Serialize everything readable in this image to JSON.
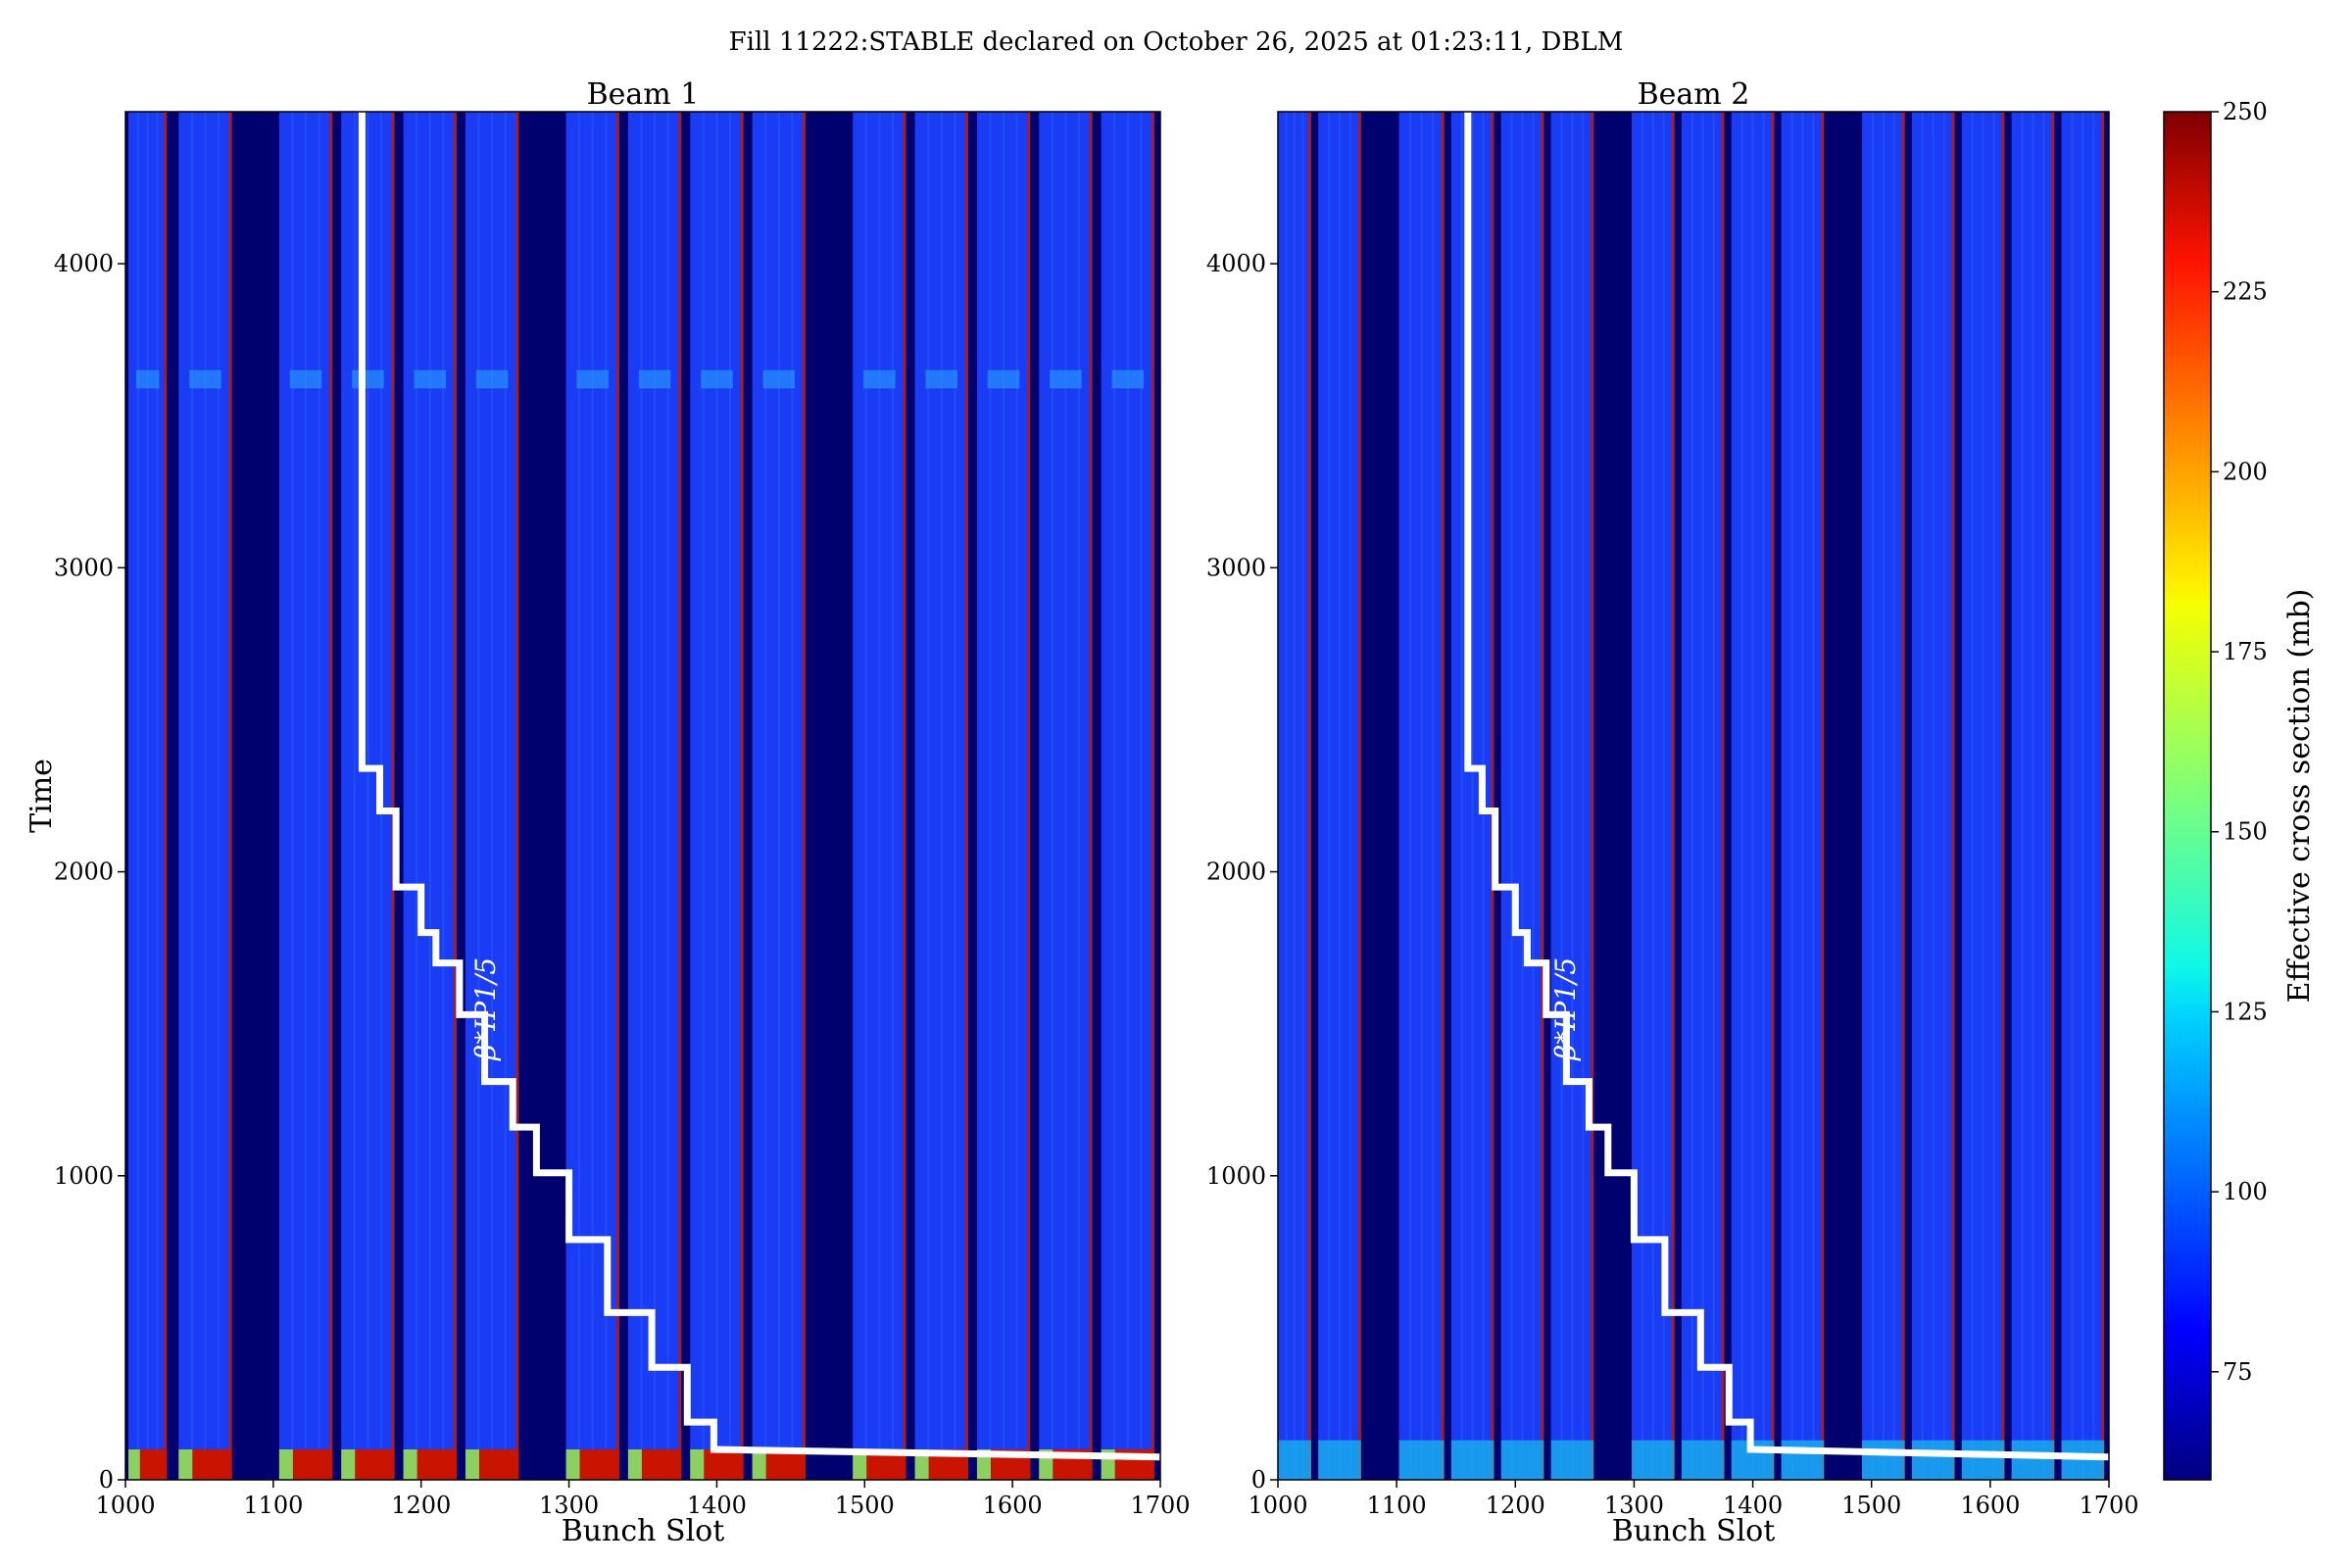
{
  "title": "Fill 11222:STABLE declared on October 26, 2025 at 01:23:11, DBLM",
  "colors": {
    "background_dark": "#00006e",
    "band_blue": "#1a3cf5",
    "band_light": "#2f6cff",
    "edge_red": "#c01800",
    "step_line": "#ffffff"
  },
  "chart_data": [
    {
      "type": "heatmap",
      "title": "Beam 1",
      "xlabel": "Bunch Slot",
      "ylabel": "Time",
      "xlim": [
        1000,
        1700
      ],
      "ylim": [
        0,
        4500
      ],
      "xticks": [
        1000,
        1100,
        1200,
        1300,
        1400,
        1500,
        1600,
        1700
      ],
      "yticks": [
        0,
        1000,
        2000,
        3000,
        4000
      ],
      "filled_slot_ranges": [
        [
          1002,
          1028
        ],
        [
          1036,
          1072
        ],
        [
          1104,
          1140
        ],
        [
          1146,
          1182
        ],
        [
          1188,
          1224
        ],
        [
          1230,
          1266
        ],
        [
          1298,
          1334
        ],
        [
          1340,
          1376
        ],
        [
          1382,
          1418
        ],
        [
          1424,
          1460
        ],
        [
          1492,
          1528
        ],
        [
          1534,
          1570
        ],
        [
          1576,
          1612
        ],
        [
          1618,
          1654
        ],
        [
          1660,
          1696
        ]
      ],
      "annotation": "β*IP1/5"
    },
    {
      "type": "heatmap",
      "title": "Beam 2",
      "xlabel": "Bunch Slot",
      "ylabel": "",
      "xlim": [
        1000,
        1700
      ],
      "ylim": [
        0,
        4500
      ],
      "xticks": [
        1000,
        1100,
        1200,
        1300,
        1400,
        1500,
        1600,
        1700
      ],
      "yticks": [
        0,
        1000,
        2000,
        3000,
        4000
      ],
      "filled_slot_ranges": [
        [
          1000,
          1028
        ],
        [
          1034,
          1070
        ],
        [
          1102,
          1140
        ],
        [
          1146,
          1182
        ],
        [
          1188,
          1224
        ],
        [
          1230,
          1266
        ],
        [
          1298,
          1334
        ],
        [
          1340,
          1376
        ],
        [
          1382,
          1418
        ],
        [
          1424,
          1460
        ],
        [
          1492,
          1528
        ],
        [
          1534,
          1570
        ],
        [
          1576,
          1612
        ],
        [
          1618,
          1654
        ],
        [
          1660,
          1696
        ]
      ],
      "annotation": "β*IP1/5"
    }
  ],
  "beta_star_step": {
    "points": [
      [
        1160,
        4500
      ],
      [
        1160,
        2340
      ],
      [
        1172,
        2340
      ],
      [
        1172,
        2200
      ],
      [
        1183,
        2200
      ],
      [
        1183,
        1950
      ],
      [
        1200,
        1950
      ],
      [
        1200,
        1800
      ],
      [
        1210,
        1800
      ],
      [
        1210,
        1700
      ],
      [
        1226,
        1700
      ],
      [
        1226,
        1530
      ],
      [
        1243,
        1530
      ],
      [
        1243,
        1310
      ],
      [
        1262,
        1310
      ],
      [
        1262,
        1160
      ],
      [
        1278,
        1160
      ],
      [
        1278,
        1010
      ],
      [
        1300,
        1010
      ],
      [
        1300,
        790
      ],
      [
        1326,
        790
      ],
      [
        1326,
        550
      ],
      [
        1356,
        550
      ],
      [
        1356,
        370
      ],
      [
        1380,
        370
      ],
      [
        1380,
        190
      ],
      [
        1398,
        190
      ],
      [
        1398,
        100
      ],
      [
        1700,
        75
      ]
    ]
  },
  "colorbar": {
    "label": "Effective cross section (mb)",
    "min": 60,
    "max": 250,
    "ticks": [
      75,
      100,
      125,
      150,
      175,
      200,
      225,
      250
    ],
    "colormap": "jet"
  }
}
